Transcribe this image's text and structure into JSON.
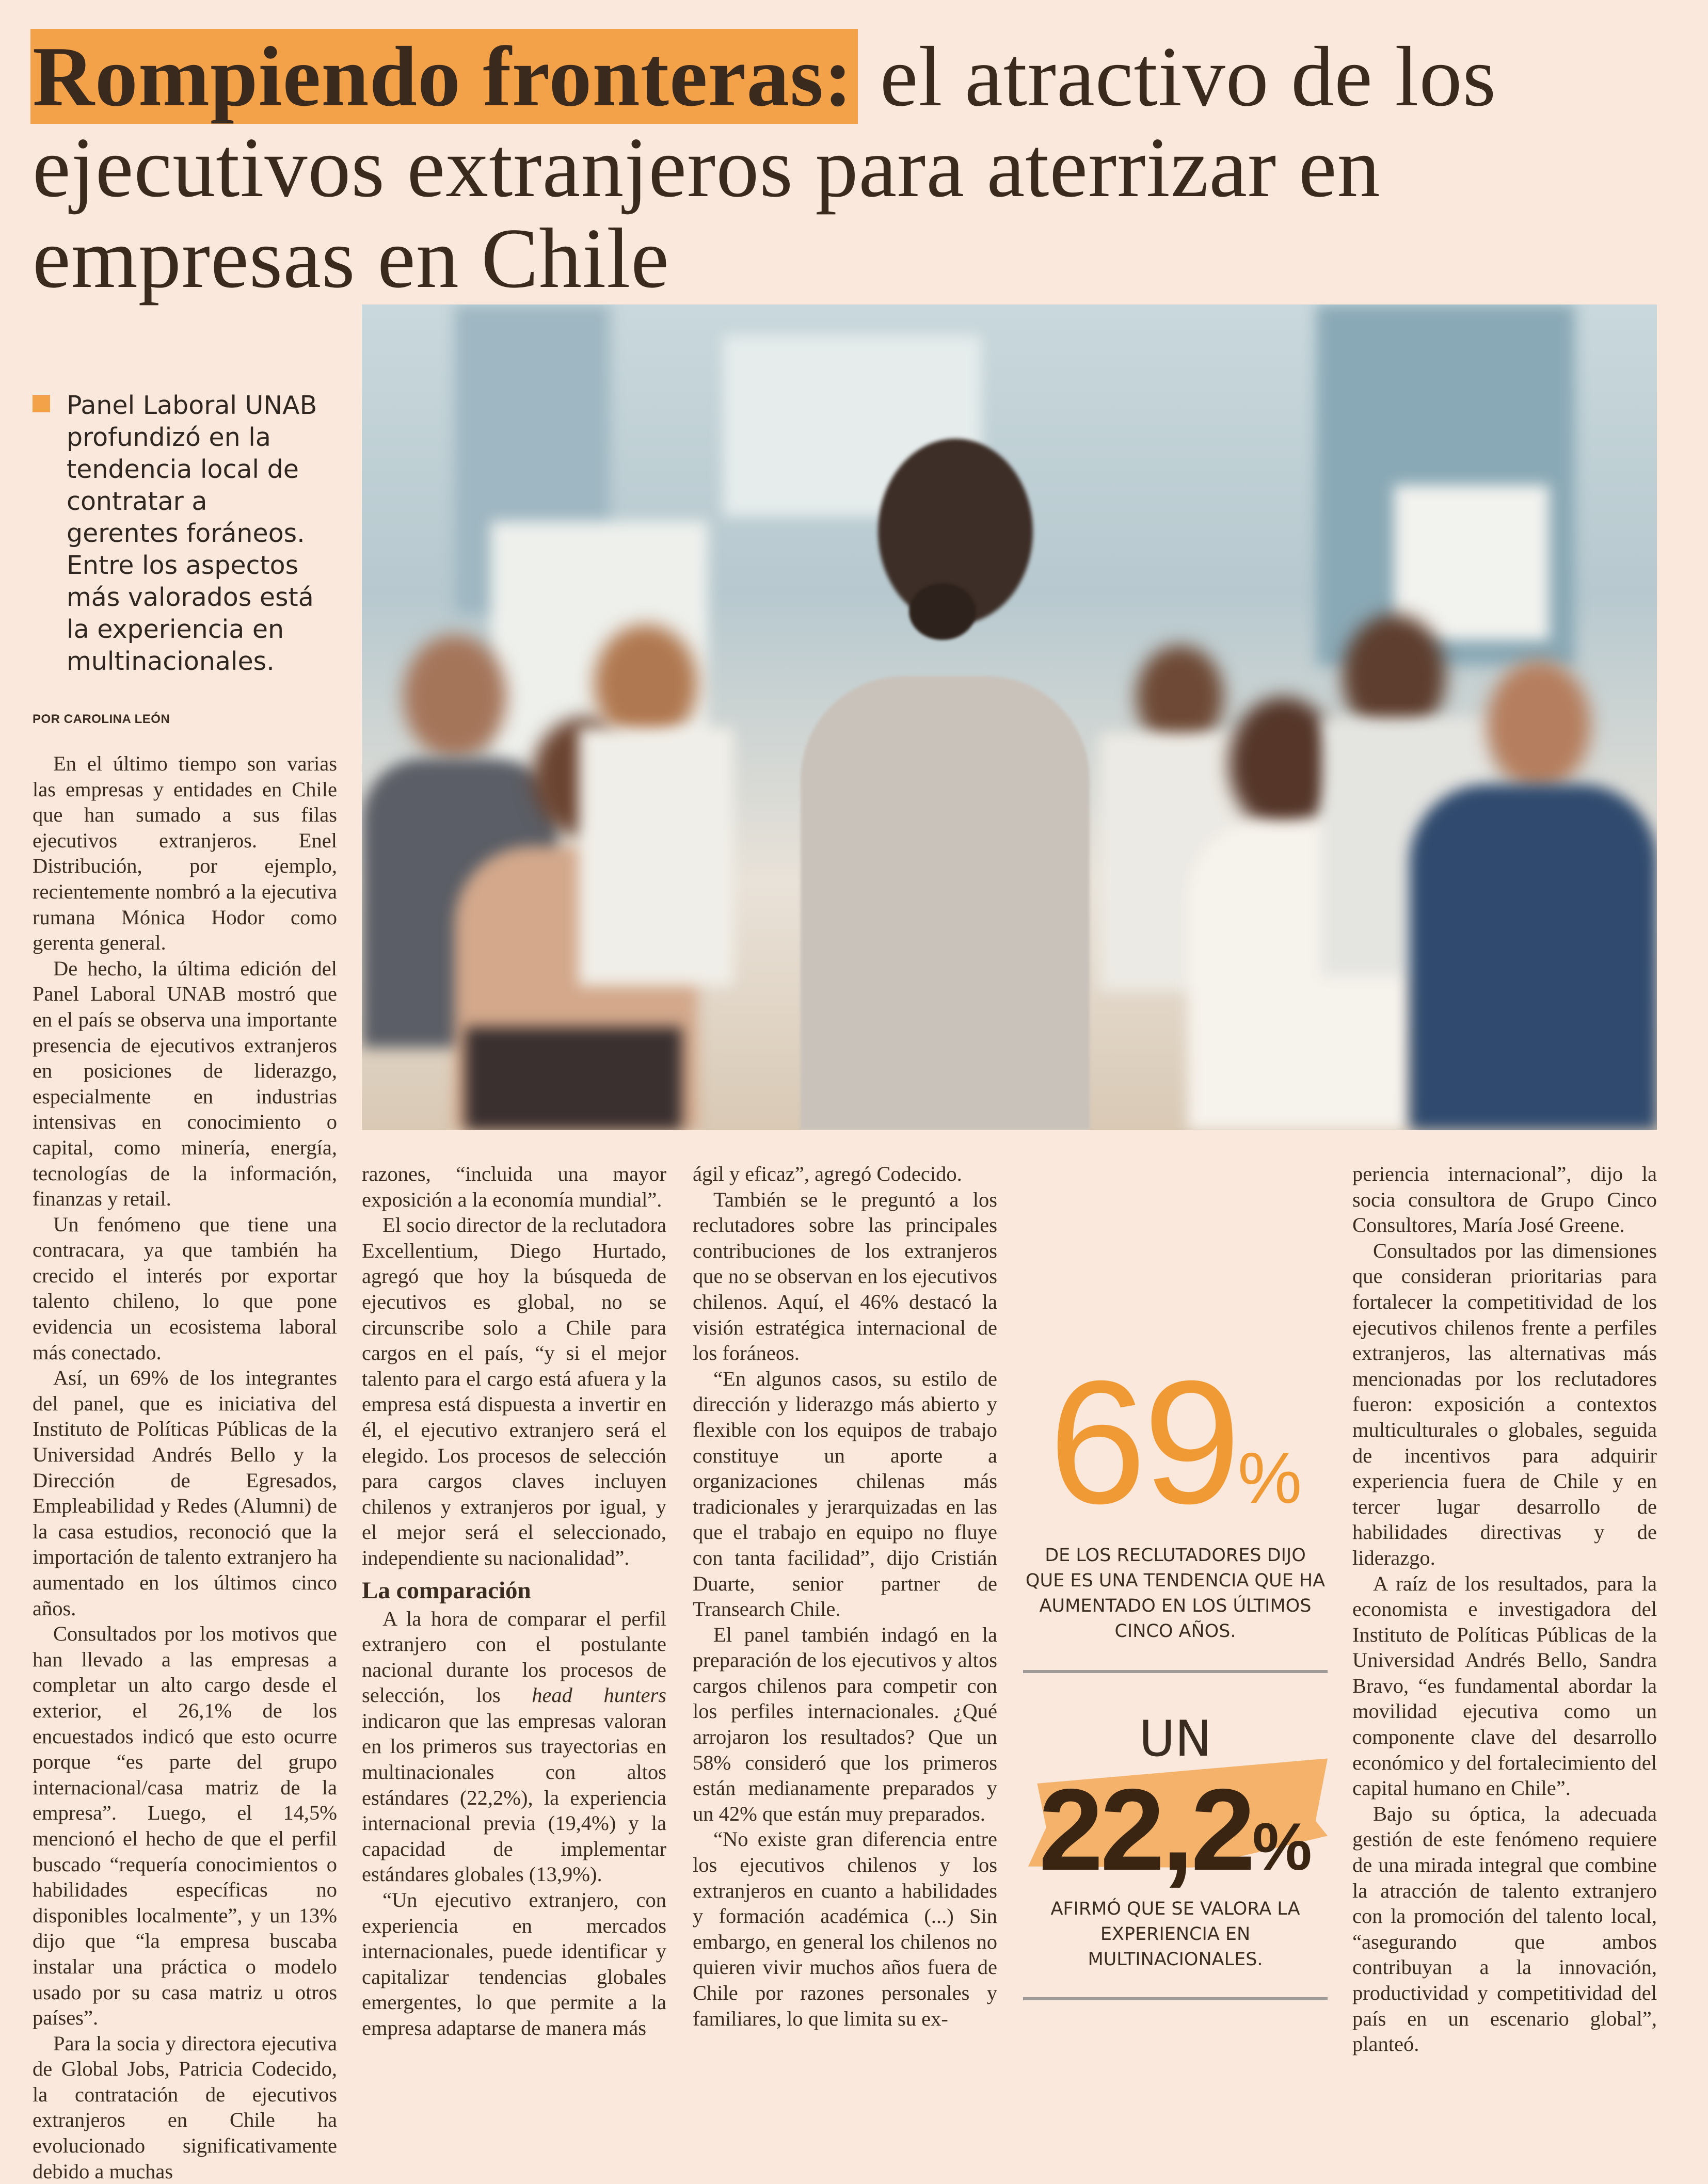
{
  "headline": {
    "highlight": "Rompiendo fronteras:",
    "rest": " el atractivo de los ejecutivos extranjeros para aterrizar en empresas en Chile"
  },
  "standfirst": "Panel Laboral UNAB profundizó en la tendencia local de contratar a gerentes foráneos. Entre los aspectos más valorados está la experiencia en multinacionales.",
  "byline": "POR CAROLINA LEÓN",
  "colors": {
    "accent": "#f4a24a",
    "background": "#fbe8dc",
    "number_orange": "#f09a36"
  },
  "photo": {
    "description_icon": "presenter-photo"
  },
  "column1": [
    "En el último tiempo son varias las empresas y entidades en Chile que han sumado a sus filas ejecutivos extranjeros. Enel Distribución, por ejemplo, recientemente nombró a la ejecutiva rumana Mónica Hodor como gerenta general.",
    "De hecho, la última edición del Panel Laboral UNAB mostró que en el país se observa una importante presencia de ejecutivos extranjeros en posiciones de liderazgo, especialmente en industrias intensivas en conocimiento o capital, como minería, energía, tecnologías de la información, finanzas y retail.",
    "Un fenómeno que tiene una contracara, ya que también ha crecido el interés por exportar talento chileno, lo que pone evidencia un ecosistema laboral más conectado.",
    "Así, un 69% de los integrantes del panel, que es iniciativa del Instituto de Políticas Públicas de la Universidad Andrés Bello y la Dirección de Egresados, Empleabilidad y Redes (Alumni) de la casa estudios, reconoció que la importación de talento extranjero ha aumentado en los últimos cinco años.",
    "Consultados por los motivos que han llevado a las empresas a completar un alto cargo desde el exterior, el 26,1% de los encuestados indicó que esto ocurre porque “es parte del grupo internacional/casa matriz de la empresa”. Luego, el 14,5% mencionó el hecho de que el perfil buscado “requería conocimientos o habilidades específicas no disponibles localmente”, y un 13% dijo que “la empresa buscaba instalar una práctica o modelo usado por su casa matriz u otros países”.",
    "Para la socia y directora ejecutiva de Global Jobs, Patricia Codecido, la contratación de ejecutivos extranjeros en Chile ha evolucionado significativamente debido a muchas"
  ],
  "column2": {
    "p1": "razones, “incluida una mayor exposición a la economía mundial”.",
    "p2": "El socio director de la reclutadora Excellentium, Diego Hurtado, agregó que hoy la búsqueda de ejecutivos es global, no se circunscribe solo a Chile para cargos en el país, “y si el mejor talento para el cargo está afuera y la empresa está dispuesta a invertir en él, el ejecutivo extranjero será el elegido. Los procesos de selección para cargos claves incluyen chilenos y extranjeros por igual, y el mejor será el seleccionado, independiente su nacionalidad”.",
    "subhead": "La comparación",
    "p3_a": "A la hora de comparar el perfil extranjero con el postulante nacional durante los procesos de selección, los ",
    "p3_italic": "head hunters",
    "p3_b": " indicaron que las empresas valoran en los primeros sus trayectorias en multinacionales con altos estándares (22,2%), la experiencia internacional previa (19,4%) y la capacidad de implementar estándares globales (13,9%).",
    "p4": "“Un ejecutivo extranjero, con experiencia en mercados internacionales, puede identificar y capitalizar tendencias globales emergentes, lo que permite a la empresa adaptarse de manera más"
  },
  "column3": [
    "ágil y eficaz”, agregó Codecido.",
    "También se le preguntó a los reclutadores sobre las principales contribuciones de los extranjeros que no se observan en los ejecutivos chilenos. Aquí, el 46% destacó la visión estratégica internacional de los foráneos.",
    "“En algunos casos, su estilo de dirección y liderazgo más abierto y flexible con los equipos de trabajo constituye un aporte a organizaciones chilenas más tradicionales y jerarquizadas en las que el trabajo en equipo no fluye con tanta facilidad”, dijo Cristián Duarte, senior partner de Transearch Chile.",
    "El panel también indagó en la preparación de los ejecutivos y altos cargos chilenos para competir con los perfiles internacionales. ¿Qué arrojaron los resultados? Que un 58% consideró que los primeros están medianamente preparados y un 42% que están muy preparados.",
    "“No existe gran diferencia entre los ejecutivos chilenos y los extranjeros en cuanto a habilidades y formación académica (...) Sin embargo, en general los chilenos no quieren vivir muchos años fuera de Chile por razones personales y familiares, lo que limita su ex-"
  ],
  "column4": [
    "periencia internacional”, dijo la socia consultora de Grupo Cinco Consultores, María José Greene.",
    "Consultados por las dimensiones que consideran prioritarias para fortalecer la competitividad de los ejecutivos chilenos frente a perfiles extranjeros, las alternativas más mencionadas por los reclutadores fueron: exposición a contextos multiculturales o globales, seguida de incentivos para adquirir experiencia fuera de Chile y en tercer lugar desarrollo de habilidades directivas y de liderazgo.",
    "A raíz de los resultados, para la economista e investigadora del Instituto de Políticas Públicas de la Universidad Andrés Bello, Sandra Bravo, “es fundamental abordar la movilidad ejecutiva como un componente clave del desarrollo económico y del fortalecimiento del capital humano en Chile”.",
    "Bajo su óptica, la adecuada gestión de este fenómeno requiere de una mirada integral que combine la atracción de talento extranjero con la promoción del talento local, “asegurando que ambos contribuyan a la innovación, productividad y competitividad del país en un escenario global”, planteó."
  ],
  "callout1": {
    "number": "69",
    "percent": "%",
    "caption": "De los reclutadores dijo que es una tendencia que ha aumentado en los últimos cinco años."
  },
  "callout2": {
    "prefix": "UN",
    "number": "22,2",
    "percent": "%",
    "caption": "Afirmó que se valora la experiencia en multinacionales."
  }
}
